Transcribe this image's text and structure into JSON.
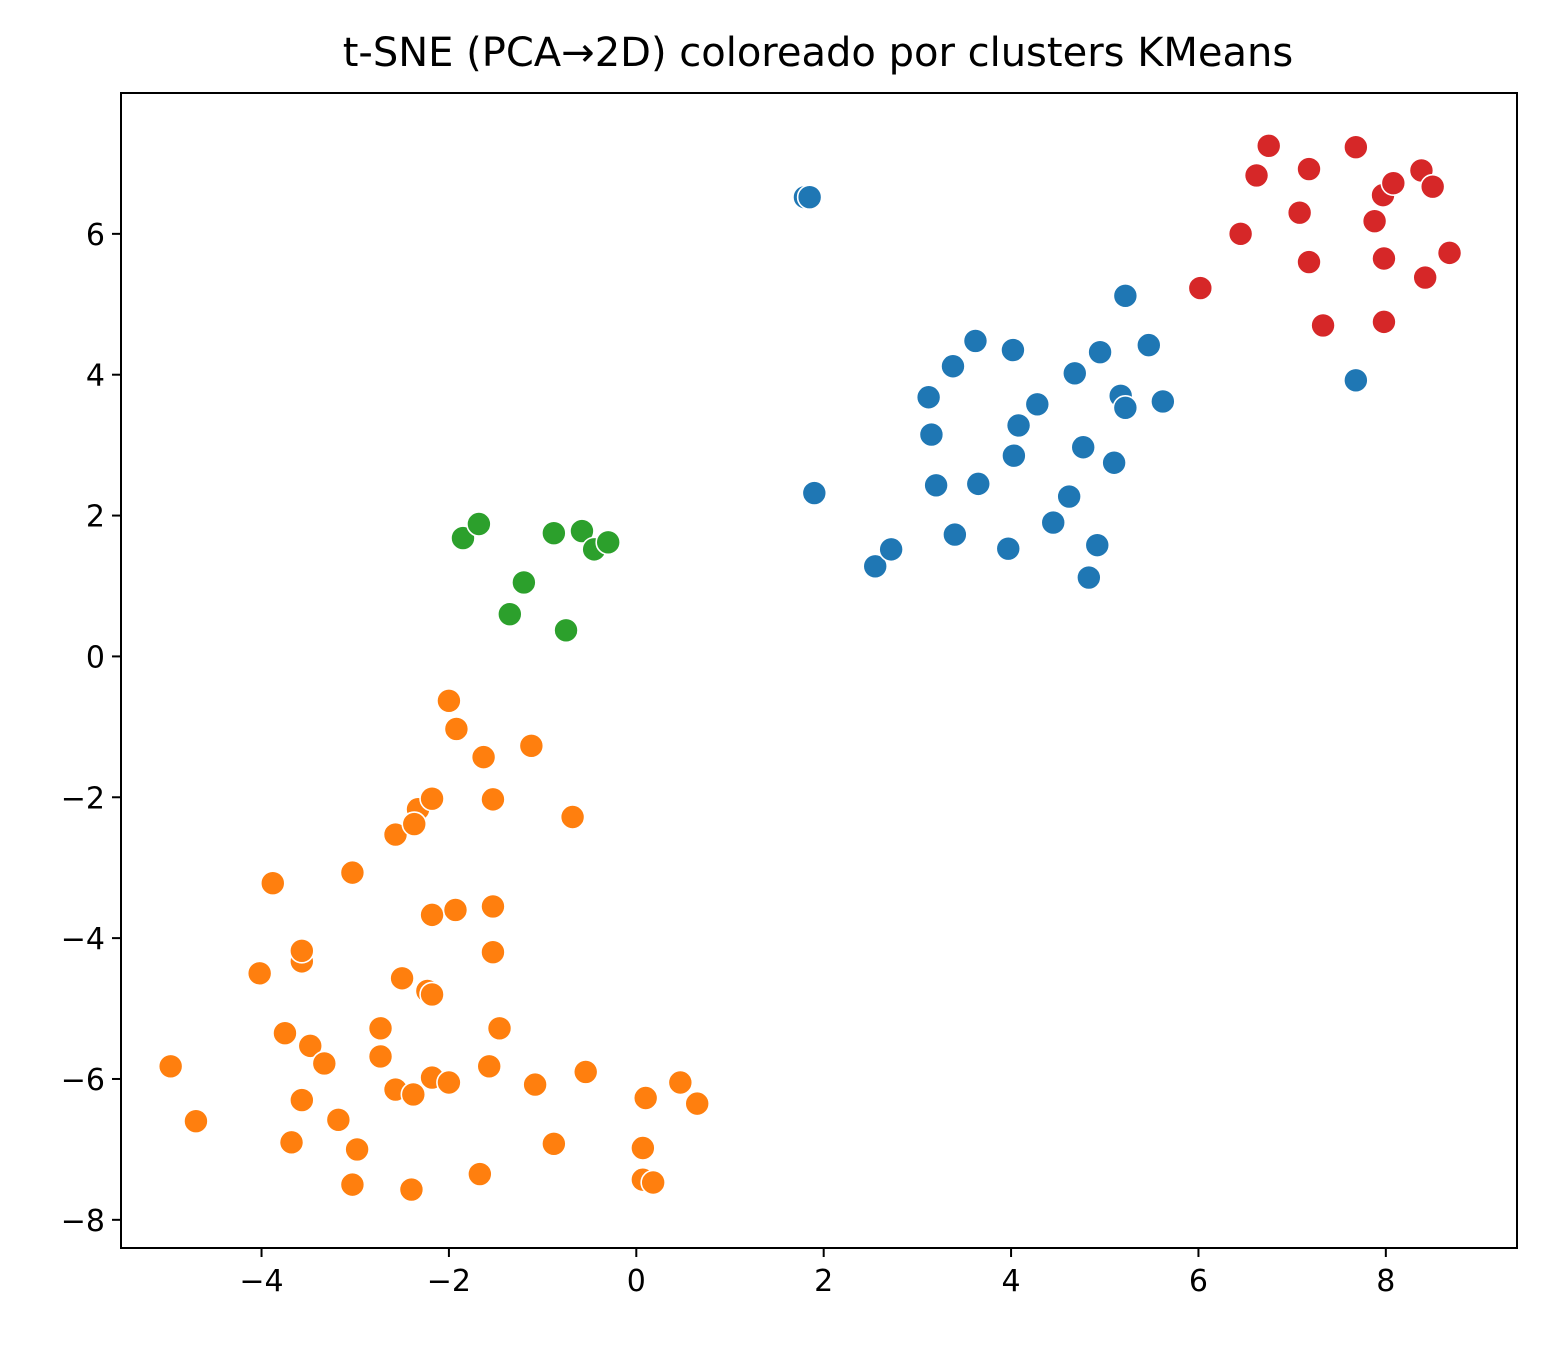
{
  "chart_data": {
    "type": "scatter",
    "title": "t-SNE (PCA→2D) coloreado por clusters KMeans",
    "xlabel": "",
    "ylabel": "",
    "xlim": [
      -5.5,
      9.4
    ],
    "ylim": [
      -8.4,
      8.0
    ],
    "xticks": [
      -4,
      -2,
      0,
      2,
      4,
      6,
      8
    ],
    "yticks": [
      -8,
      -6,
      -4,
      -2,
      0,
      2,
      4,
      6
    ],
    "xtick_labels": [
      "−4",
      "−2",
      "0",
      "2",
      "4",
      "6",
      "8"
    ],
    "ytick_labels": [
      "−8",
      "−6",
      "−4",
      "−2",
      "0",
      "2",
      "4",
      "6"
    ],
    "grid": false,
    "legend": false,
    "series": [
      {
        "color": "#1f77b4",
        "points": [
          [
            1.8,
            6.52
          ],
          [
            1.85,
            6.52
          ],
          [
            1.9,
            2.32
          ],
          [
            2.55,
            1.28
          ],
          [
            2.72,
            1.52
          ],
          [
            3.12,
            3.68
          ],
          [
            3.15,
            3.15
          ],
          [
            3.2,
            2.43
          ],
          [
            3.38,
            4.12
          ],
          [
            3.4,
            1.73
          ],
          [
            3.62,
            4.48
          ],
          [
            3.65,
            2.45
          ],
          [
            3.97,
            1.53
          ],
          [
            4.02,
            4.35
          ],
          [
            4.03,
            2.85
          ],
          [
            4.08,
            3.28
          ],
          [
            4.28,
            3.58
          ],
          [
            4.45,
            1.9
          ],
          [
            4.62,
            2.27
          ],
          [
            4.68,
            4.02
          ],
          [
            4.77,
            2.97
          ],
          [
            4.83,
            1.12
          ],
          [
            4.92,
            1.58
          ],
          [
            4.95,
            4.32
          ],
          [
            5.1,
            2.75
          ],
          [
            5.17,
            3.7
          ],
          [
            5.22,
            3.53
          ],
          [
            5.22,
            5.12
          ],
          [
            5.47,
            4.42
          ],
          [
            5.62,
            3.62
          ],
          [
            7.68,
            3.92
          ]
        ]
      },
      {
        "color": "#ff7f0e",
        "points": [
          [
            -4.97,
            -5.82
          ],
          [
            -4.7,
            -6.6
          ],
          [
            -4.02,
            -4.5
          ],
          [
            -3.88,
            -3.22
          ],
          [
            -3.75,
            -5.35
          ],
          [
            -3.68,
            -6.9
          ],
          [
            -3.57,
            -4.33
          ],
          [
            -3.57,
            -4.18
          ],
          [
            -3.57,
            -6.3
          ],
          [
            -3.48,
            -5.53
          ],
          [
            -3.33,
            -5.78
          ],
          [
            -3.18,
            -6.58
          ],
          [
            -3.03,
            -3.07
          ],
          [
            -3.03,
            -7.5
          ],
          [
            -2.98,
            -7.0
          ],
          [
            -2.73,
            -5.28
          ],
          [
            -2.73,
            -5.68
          ],
          [
            -2.57,
            -2.53
          ],
          [
            -2.57,
            -6.15
          ],
          [
            -2.5,
            -4.57
          ],
          [
            -2.4,
            -7.57
          ],
          [
            -2.38,
            -6.22
          ],
          [
            -2.33,
            -2.17
          ],
          [
            -2.37,
            -2.38
          ],
          [
            -2.23,
            -4.75
          ],
          [
            -2.18,
            -4.8
          ],
          [
            -2.18,
            -2.02
          ],
          [
            -2.18,
            -3.67
          ],
          [
            -2.18,
            -5.98
          ],
          [
            -2.0,
            -6.05
          ],
          [
            -2.0,
            -0.63
          ],
          [
            -1.93,
            -3.6
          ],
          [
            -1.92,
            -1.03
          ],
          [
            -1.67,
            -7.35
          ],
          [
            -1.63,
            -1.43
          ],
          [
            -1.57,
            -5.82
          ],
          [
            -1.53,
            -2.03
          ],
          [
            -1.53,
            -3.55
          ],
          [
            -1.53,
            -4.2
          ],
          [
            -1.46,
            -5.28
          ],
          [
            -1.12,
            -1.27
          ],
          [
            -1.08,
            -6.08
          ],
          [
            -0.88,
            -6.92
          ],
          [
            -0.68,
            -2.28
          ],
          [
            -0.54,
            -5.9
          ],
          [
            0.07,
            -6.98
          ],
          [
            0.07,
            -7.43
          ],
          [
            0.1,
            -6.27
          ],
          [
            0.18,
            -7.47
          ],
          [
            0.47,
            -6.05
          ],
          [
            0.65,
            -6.35
          ]
        ]
      },
      {
        "color": "#2ca02c",
        "points": [
          [
            -1.85,
            1.68
          ],
          [
            -1.68,
            1.88
          ],
          [
            -1.35,
            0.6
          ],
          [
            -1.2,
            1.05
          ],
          [
            -0.88,
            1.75
          ],
          [
            -0.75,
            0.37
          ],
          [
            -0.58,
            1.78
          ],
          [
            -0.45,
            1.52
          ],
          [
            -0.3,
            1.62
          ]
        ]
      },
      {
        "color": "#d62728",
        "points": [
          [
            6.02,
            5.23
          ],
          [
            6.45,
            6.0
          ],
          [
            6.62,
            6.83
          ],
          [
            6.75,
            7.25
          ],
          [
            7.08,
            6.3
          ],
          [
            7.18,
            6.92
          ],
          [
            7.18,
            5.6
          ],
          [
            7.33,
            4.7
          ],
          [
            7.68,
            7.23
          ],
          [
            7.88,
            6.18
          ],
          [
            7.97,
            6.55
          ],
          [
            7.98,
            5.65
          ],
          [
            7.98,
            4.75
          ],
          [
            8.08,
            6.72
          ],
          [
            8.38,
            6.9
          ],
          [
            8.42,
            5.38
          ],
          [
            8.5,
            6.67
          ],
          [
            8.68,
            5.73
          ]
        ]
      }
    ]
  }
}
